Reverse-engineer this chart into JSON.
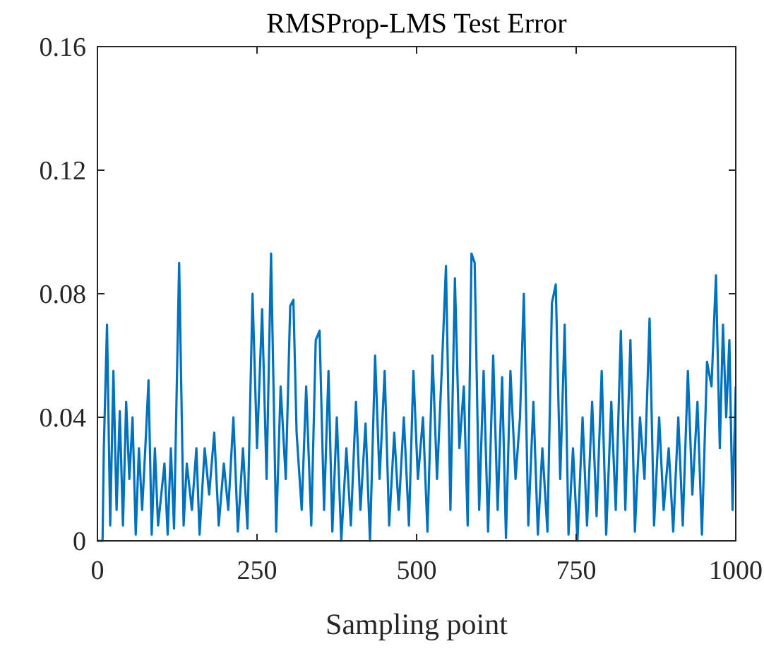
{
  "chart_data": {
    "type": "line",
    "title": "RMSProp-LMS Test Error",
    "xlabel": "Sampling point",
    "xlim": [
      0,
      1000
    ],
    "xticks": [
      0,
      250,
      500,
      750,
      1000
    ],
    "ylim": [
      0,
      0.16
    ],
    "yticks": [
      0,
      0.04,
      0.08,
      0.12,
      0.16
    ],
    "grid": false,
    "marker": "none",
    "line_style": "solid",
    "series": [
      {
        "color": "#0072bd",
        "x": [
          0,
          8,
          10,
          15,
          20,
          25,
          30,
          35,
          40,
          45,
          50,
          55,
          60,
          65,
          70,
          75,
          80,
          85,
          90,
          95,
          100,
          105,
          110,
          115,
          120,
          128,
          135,
          140,
          148,
          155,
          160,
          168,
          175,
          183,
          190,
          198,
          205,
          213,
          220,
          228,
          235,
          243,
          250,
          258,
          265,
          272,
          280,
          287,
          295,
          302,
          307,
          312,
          320,
          327,
          335,
          342,
          348,
          355,
          362,
          368,
          375,
          382,
          390,
          397,
          405,
          412,
          420,
          427,
          435,
          442,
          450,
          457,
          465,
          472,
          480,
          488,
          495,
          502,
          510,
          517,
          525,
          532,
          540,
          546,
          553,
          560,
          567,
          574,
          580,
          586,
          591,
          598,
          605,
          612,
          620,
          627,
          634,
          640,
          647,
          655,
          662,
          668,
          675,
          683,
          690,
          697,
          705,
          712,
          718,
          725,
          732,
          738,
          745,
          752,
          760,
          767,
          775,
          782,
          790,
          797,
          805,
          812,
          820,
          827,
          835,
          842,
          850,
          857,
          865,
          872,
          880,
          887,
          895,
          902,
          910,
          917,
          925,
          932,
          940,
          947,
          955,
          962,
          969,
          975,
          980,
          985,
          990,
          995,
          1000
        ],
        "values": [
          0,
          0,
          0.03,
          0.07,
          0.005,
          0.055,
          0.01,
          0.042,
          0.005,
          0.045,
          0.02,
          0.04,
          0.002,
          0.03,
          0.01,
          0.03,
          0.052,
          0.002,
          0.03,
          0.005,
          0.015,
          0.025,
          0.002,
          0.03,
          0.004,
          0.09,
          0.005,
          0.025,
          0.01,
          0.03,
          0.002,
          0.03,
          0.015,
          0.035,
          0.005,
          0.025,
          0.01,
          0.04,
          0.003,
          0.03,
          0.004,
          0.08,
          0.03,
          0.075,
          0.02,
          0.093,
          0.003,
          0.05,
          0.02,
          0.076,
          0.078,
          0.035,
          0.01,
          0.05,
          0.005,
          0.065,
          0.068,
          0.01,
          0.055,
          0.003,
          0.04,
          0,
          0.03,
          0.005,
          0.045,
          0.01,
          0.038,
          0,
          0.06,
          0.02,
          0.055,
          0.005,
          0.035,
          0.01,
          0.04,
          0.005,
          0.055,
          0.02,
          0.04,
          0.003,
          0.06,
          0.02,
          0.058,
          0.089,
          0.01,
          0.085,
          0.03,
          0.05,
          0.005,
          0.093,
          0.09,
          0.01,
          0.055,
          0.003,
          0.06,
          0.01,
          0.053,
          0.001,
          0.055,
          0.02,
          0.04,
          0.08,
          0.005,
          0.045,
          0.002,
          0.03,
          0.003,
          0.077,
          0.083,
          0.02,
          0.07,
          0.002,
          0.03,
          0,
          0.04,
          0.005,
          0.045,
          0.008,
          0.055,
          0.002,
          0.045,
          0.01,
          0.068,
          0.01,
          0.065,
          0.003,
          0.04,
          0.02,
          0.072,
          0.005,
          0.04,
          0.01,
          0.03,
          0.003,
          0.04,
          0.005,
          0.055,
          0.015,
          0.045,
          0.002,
          0.058,
          0.05,
          0.086,
          0.03,
          0.07,
          0.04,
          0.065,
          0.01,
          0.05
        ]
      }
    ]
  }
}
